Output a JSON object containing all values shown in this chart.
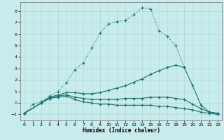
{
  "xlabel": "Humidex (Indice chaleur)",
  "background_color": "#c8ecec",
  "line_color": "#1a7070",
  "grid_color": "#b0d8d8",
  "xlim": [
    -0.5,
    23.5
  ],
  "ylim": [
    -1.5,
    8.8
  ],
  "yticks": [
    -1,
    0,
    1,
    2,
    3,
    4,
    5,
    6,
    7,
    8
  ],
  "xticks": [
    0,
    1,
    2,
    3,
    4,
    5,
    6,
    7,
    8,
    9,
    10,
    11,
    12,
    13,
    14,
    15,
    16,
    17,
    18,
    19,
    20,
    21,
    22,
    23
  ],
  "curve1_x": [
    0,
    1,
    2,
    3,
    4,
    5,
    6,
    7,
    8,
    9,
    10,
    11,
    12,
    13,
    14,
    15,
    16,
    17,
    18,
    19
  ],
  "curve1_y": [
    -0.9,
    -0.1,
    0.1,
    0.6,
    1.0,
    1.8,
    2.9,
    3.5,
    4.8,
    6.1,
    6.9,
    7.1,
    7.2,
    7.7,
    8.3,
    8.2,
    6.3,
    5.8,
    5.0,
    3.1
  ],
  "curve2_x": [
    0,
    2,
    3,
    4,
    5,
    6,
    7,
    8,
    9,
    10,
    11,
    12,
    13,
    14,
    15,
    16,
    17,
    18,
    19,
    20,
    21,
    22,
    23
  ],
  "curve2_y": [
    -0.9,
    0.0,
    0.5,
    0.7,
    0.9,
    0.9,
    0.8,
    0.8,
    0.9,
    1.1,
    1.3,
    1.5,
    1.8,
    2.1,
    2.5,
    2.8,
    3.1,
    3.3,
    3.1,
    1.5,
    -0.2,
    -0.8,
    -0.9
  ],
  "curve3_x": [
    0,
    2,
    3,
    4,
    5,
    6,
    7,
    8,
    9,
    10,
    11,
    12,
    13,
    14,
    15,
    16,
    17,
    18,
    19,
    20,
    21,
    22,
    23
  ],
  "curve3_y": [
    -0.9,
    0.0,
    0.4,
    0.6,
    0.7,
    0.5,
    0.4,
    0.3,
    0.3,
    0.3,
    0.3,
    0.4,
    0.4,
    0.4,
    0.5,
    0.5,
    0.5,
    0.4,
    0.3,
    -0.1,
    -0.5,
    -0.8,
    -0.9
  ],
  "curve4_x": [
    0,
    2,
    3,
    4,
    5,
    6,
    7,
    8,
    9,
    10,
    11,
    12,
    13,
    14,
    15,
    16,
    17,
    18,
    19,
    20,
    21,
    22,
    23
  ],
  "curve4_y": [
    -0.9,
    0.0,
    0.4,
    0.5,
    0.6,
    0.3,
    0.1,
    0.0,
    -0.1,
    -0.1,
    -0.2,
    -0.2,
    -0.2,
    -0.2,
    -0.2,
    -0.3,
    -0.3,
    -0.4,
    -0.5,
    -0.6,
    -0.8,
    -0.9,
    -1.0
  ]
}
